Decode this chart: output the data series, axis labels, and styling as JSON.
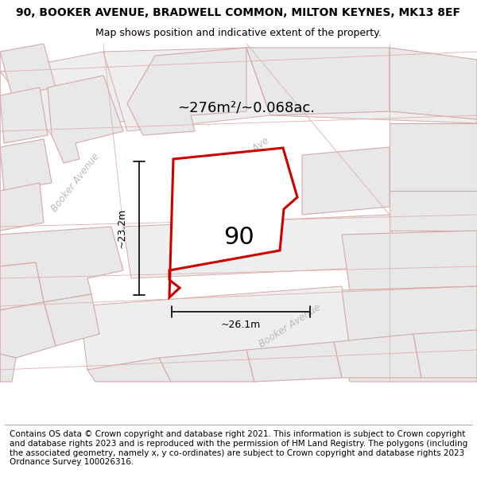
{
  "title_line1": "90, BOOKER AVENUE, BRADWELL COMMON, MILTON KEYNES, MK13 8EF",
  "title_line2": "Map shows position and indicative extent of the property.",
  "footer_text": "Contains OS data © Crown copyright and database right 2021. This information is subject to Crown copyright and database rights 2023 and is reproduced with the permission of HM Land Registry. The polygons (including the associated geometry, namely x, y co-ordinates) are subject to Crown copyright and database rights 2023 Ordnance Survey 100026316.",
  "area_label": "~276m²/~0.068ac.",
  "width_label": "~26.1m",
  "height_label": "~23.2m",
  "property_number": "90",
  "map_bg": "#f5f5f5",
  "block_fill": "#e8e8e8",
  "block_edge": "#d4a8a8",
  "road_fill": "#f0f0f0",
  "property_stroke": "#cc0000",
  "property_fill": "#ffffff",
  "title_fontsize": 10,
  "subtitle_fontsize": 9,
  "footer_fontsize": 7.5,
  "street_label_color": "#c0b8b8"
}
